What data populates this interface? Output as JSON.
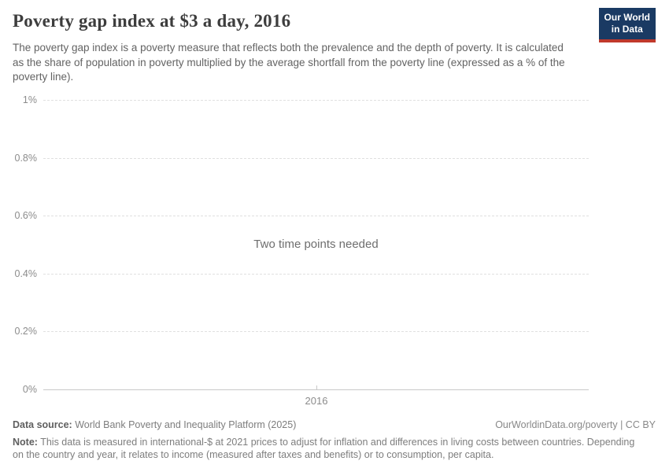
{
  "header": {
    "title": "Poverty gap index at $3 a day, 2016",
    "subtitle": "The poverty gap index is a poverty measure that reflects both the prevalence and the depth of poverty. It is calculated as the share of population in poverty multiplied by the average shortfall from the poverty line (expressed as a % of the poverty line).",
    "logo": {
      "line1": "Our World",
      "line2": "in Data",
      "bg_color": "#1a3a63",
      "stripe_color": "#c0392b"
    }
  },
  "chart_data": {
    "type": "line",
    "title": "Poverty gap index at $3 a day, 2016",
    "series": [],
    "empty_message": "Two time points needed",
    "x_ticks": [
      "2016"
    ],
    "y_ticks": [
      "1%",
      "0.8%",
      "0.6%",
      "0.4%",
      "0.2%",
      "0%"
    ],
    "ylim": [
      0,
      1
    ],
    "xlabel": "",
    "ylabel": "",
    "grid": "horizontal-dashed",
    "legend": "none"
  },
  "footer": {
    "data_source_label": "Data source:",
    "data_source_value": "World Bank Poverty and Inequality Platform (2025)",
    "attribution": "OurWorldinData.org/poverty | CC BY",
    "note_label": "Note:",
    "note_value": "This data is measured in international-$ at 2021 prices to adjust for inflation and differences in living costs between countries. Depending on the country and year, it relates to income (measured after taxes and benefits) or to consumption, per capita."
  }
}
